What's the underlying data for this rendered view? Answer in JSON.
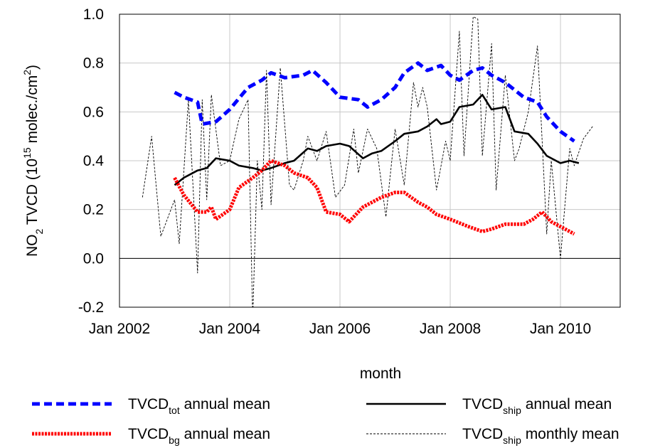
{
  "chart_data": {
    "type": "line",
    "ylabel": [
      {
        "text": "NO"
      },
      {
        "text": "2",
        "shift": "sub"
      },
      {
        "text": " TVCD (10"
      },
      {
        "text": "15",
        "shift": "sup"
      },
      {
        "text": " molec./cm"
      },
      {
        "text": "2",
        "shift": "sup"
      },
      {
        "text": ")"
      }
    ],
    "xlabel": "month",
    "xlim": [
      "2002-01",
      "2011-02"
    ],
    "xticks": [
      {
        "value": "2002-01",
        "label": "Jan 2002"
      },
      {
        "value": "2004-01",
        "label": "Jan 2004"
      },
      {
        "value": "2006-01",
        "label": "Jan 2006"
      },
      {
        "value": "2008-01",
        "label": "Jan 2008"
      },
      {
        "value": "2010-01",
        "label": "Jan 2010"
      }
    ],
    "ylim": [
      -0.2,
      1.0
    ],
    "yticks": [
      {
        "value": -0.2,
        "label": "-0.2"
      },
      {
        "value": 0,
        "label": "0.0"
      },
      {
        "value": 0.2,
        "label": "0.2"
      },
      {
        "value": 0.4,
        "label": "0.4"
      },
      {
        "value": 0.6,
        "label": "0.6"
      },
      {
        "value": 0.8,
        "label": "0.8"
      },
      {
        "value": 1.0,
        "label": "1.0"
      }
    ],
    "grid": true,
    "series": [
      {
        "name": {
          "main": "TVCD",
          "sub": "tot",
          "rest": " annual mean"
        },
        "color": "#0000ff",
        "linestyle": "dashed",
        "x": [
          "2003-01",
          "2003-03",
          "2003-06",
          "2003-07",
          "2003-10",
          "2004-01",
          "2004-05",
          "2004-08",
          "2004-10",
          "2005-01",
          "2005-05",
          "2005-07",
          "2005-10",
          "2006-01",
          "2006-05",
          "2006-07",
          "2006-10",
          "2007-01",
          "2007-03",
          "2007-06",
          "2007-08",
          "2007-11",
          "2008-01",
          "2008-03",
          "2008-06",
          "2008-08",
          "2008-10",
          "2009-01",
          "2009-05",
          "2009-08",
          "2009-10",
          "2010-01",
          "2010-04"
        ],
        "values": [
          0.68,
          0.66,
          0.64,
          0.55,
          0.56,
          0.61,
          0.7,
          0.73,
          0.76,
          0.74,
          0.75,
          0.77,
          0.72,
          0.66,
          0.65,
          0.62,
          0.65,
          0.7,
          0.76,
          0.8,
          0.77,
          0.79,
          0.75,
          0.73,
          0.77,
          0.78,
          0.75,
          0.72,
          0.66,
          0.64,
          0.58,
          0.52,
          0.48
        ]
      },
      {
        "name": {
          "main": "TVCD",
          "sub": "ship",
          "rest": " annual mean"
        },
        "color": "#000000",
        "linestyle": "solid",
        "x": [
          "2003-01",
          "2003-03",
          "2003-06",
          "2003-08",
          "2003-10",
          "2004-01",
          "2004-03",
          "2004-06",
          "2004-08",
          "2004-10",
          "2005-01",
          "2005-03",
          "2005-06",
          "2005-08",
          "2005-10",
          "2006-01",
          "2006-03",
          "2006-06",
          "2006-08",
          "2006-10",
          "2007-01",
          "2007-03",
          "2007-06",
          "2007-08",
          "2007-10",
          "2007-11",
          "2008-01",
          "2008-03",
          "2008-06",
          "2008-08",
          "2008-10",
          "2009-01",
          "2009-03",
          "2009-06",
          "2009-08",
          "2009-10",
          "2010-01",
          "2010-03",
          "2010-05"
        ],
        "values": [
          0.3,
          0.33,
          0.36,
          0.37,
          0.41,
          0.4,
          0.38,
          0.37,
          0.36,
          0.37,
          0.39,
          0.4,
          0.45,
          0.44,
          0.46,
          0.47,
          0.46,
          0.41,
          0.43,
          0.44,
          0.48,
          0.51,
          0.52,
          0.54,
          0.57,
          0.55,
          0.56,
          0.62,
          0.63,
          0.67,
          0.61,
          0.62,
          0.52,
          0.51,
          0.47,
          0.42,
          0.39,
          0.4,
          0.39
        ]
      },
      {
        "name": {
          "main": "TVCD",
          "sub": "bg",
          "rest": " annual mean"
        },
        "color": "#ff0000",
        "linestyle": "dotted",
        "x": [
          "2003-01",
          "2003-03",
          "2003-06",
          "2003-08",
          "2003-09",
          "2003-10",
          "2004-01",
          "2004-03",
          "2004-06",
          "2004-08",
          "2004-10",
          "2005-01",
          "2005-03",
          "2005-06",
          "2005-08",
          "2005-10",
          "2006-01",
          "2006-03",
          "2006-06",
          "2006-08",
          "2006-10",
          "2007-01",
          "2007-03",
          "2007-06",
          "2007-08",
          "2007-10",
          "2008-01",
          "2008-05",
          "2008-08",
          "2008-10",
          "2009-01",
          "2009-05",
          "2009-07",
          "2009-09",
          "2009-11",
          "2010-02",
          "2010-04"
        ],
        "values": [
          0.33,
          0.26,
          0.19,
          0.19,
          0.21,
          0.16,
          0.2,
          0.29,
          0.33,
          0.36,
          0.4,
          0.38,
          0.35,
          0.33,
          0.29,
          0.19,
          0.18,
          0.15,
          0.21,
          0.23,
          0.25,
          0.27,
          0.27,
          0.23,
          0.21,
          0.18,
          0.16,
          0.13,
          0.11,
          0.12,
          0.14,
          0.14,
          0.16,
          0.19,
          0.15,
          0.12,
          0.1
        ]
      },
      {
        "name": {
          "main": "TVCD",
          "sub": "ship",
          "rest": " monthly mean"
        },
        "color": "#000000",
        "linestyle": "thin-dashed",
        "x": [
          "2002-06",
          "2002-08",
          "2002-10",
          "2003-01",
          "2003-02",
          "2003-04",
          "2003-05",
          "2003-06",
          "2003-07",
          "2003-08",
          "2003-09",
          "2003-11",
          "2004-01",
          "2004-03",
          "2004-05",
          "2004-06",
          "2004-07",
          "2004-08",
          "2004-09",
          "2004-10",
          "2004-12",
          "2005-02",
          "2005-03",
          "2005-05",
          "2005-06",
          "2005-08",
          "2005-10",
          "2005-12",
          "2006-02",
          "2006-04",
          "2006-05",
          "2006-07",
          "2006-09",
          "2006-11",
          "2007-01",
          "2007-03",
          "2007-05",
          "2007-06",
          "2007-07",
          "2007-08",
          "2007-10",
          "2007-12",
          "2008-01",
          "2008-03",
          "2008-04",
          "2008-06",
          "2008-07",
          "2008-08",
          "2008-10",
          "2008-11",
          "2009-01",
          "2009-03",
          "2009-04",
          "2009-06",
          "2009-08",
          "2009-10",
          "2009-11",
          "2010-01",
          "2010-03",
          "2010-04",
          "2010-06",
          "2010-08"
        ],
        "values": [
          0.25,
          0.5,
          0.09,
          0.24,
          0.06,
          0.65,
          0.3,
          -0.06,
          0.65,
          0.24,
          0.67,
          0.38,
          0.4,
          0.57,
          0.65,
          -0.25,
          0.4,
          0.2,
          0.77,
          0.22,
          0.78,
          0.3,
          0.28,
          0.4,
          0.5,
          0.4,
          0.52,
          0.25,
          0.3,
          0.53,
          0.35,
          0.53,
          0.45,
          0.17,
          0.53,
          0.3,
          0.72,
          0.62,
          0.7,
          0.62,
          0.28,
          0.48,
          0.4,
          0.93,
          0.42,
          0.99,
          0.98,
          0.42,
          0.88,
          0.28,
          0.75,
          0.4,
          0.45,
          0.6,
          0.87,
          0.1,
          0.4,
          0.0,
          0.45,
          0.38,
          0.49,
          0.54
        ]
      }
    ]
  }
}
